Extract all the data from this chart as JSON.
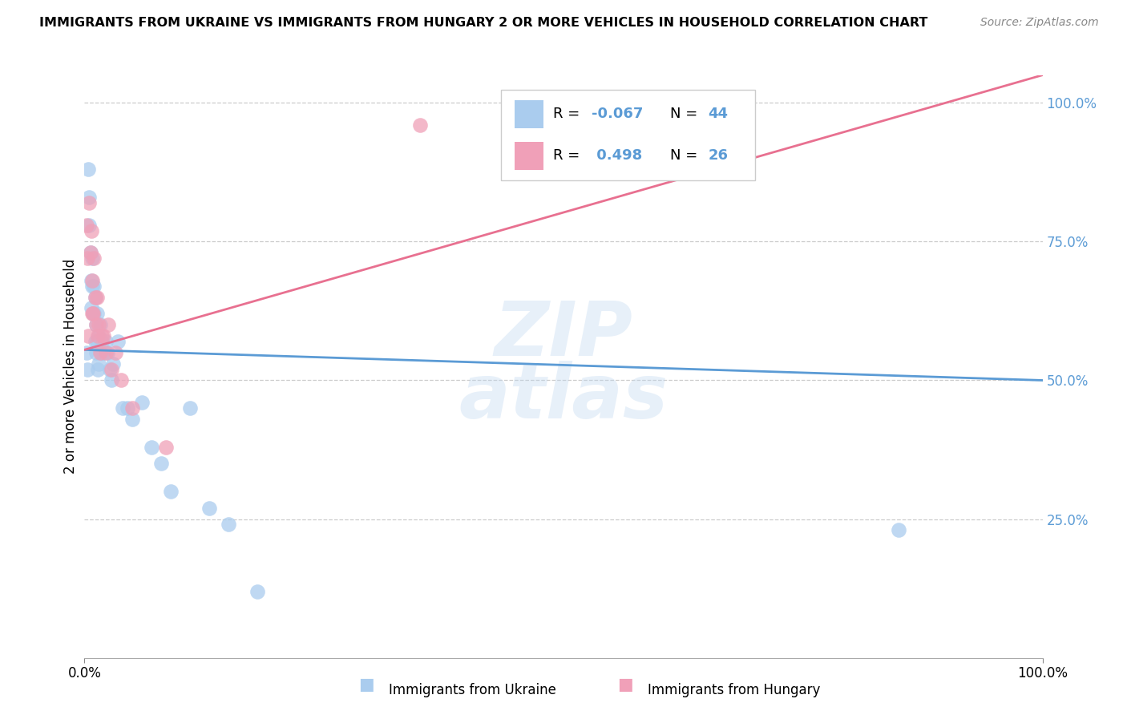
{
  "title": "IMMIGRANTS FROM UKRAINE VS IMMIGRANTS FROM HUNGARY 2 OR MORE VEHICLES IN HOUSEHOLD CORRELATION CHART",
  "source": "Source: ZipAtlas.com",
  "ylabel": "2 or more Vehicles in Household",
  "xlim": [
    0.0,
    1.0
  ],
  "ylim": [
    0.0,
    1.05
  ],
  "ytick_values": [
    0.25,
    0.5,
    0.75,
    1.0
  ],
  "ytick_labels": [
    "25.0%",
    "50.0%",
    "75.0%",
    "100.0%"
  ],
  "ukraine_color": "#aaccee",
  "hungary_color": "#f0a0b8",
  "trendline_ukraine_color": "#5b9bd5",
  "trendline_hungary_color": "#e87090",
  "ukraine_R": -0.067,
  "ukraine_N": 44,
  "hungary_R": 0.498,
  "hungary_N": 26,
  "watermark": "ZIPAtlas",
  "ukraine_x": [
    0.002,
    0.003,
    0.004,
    0.005,
    0.005,
    0.006,
    0.007,
    0.007,
    0.008,
    0.008,
    0.009,
    0.01,
    0.01,
    0.011,
    0.011,
    0.012,
    0.012,
    0.013,
    0.013,
    0.014,
    0.015,
    0.015,
    0.016,
    0.017,
    0.018,
    0.02,
    0.022,
    0.024,
    0.026,
    0.028,
    0.03,
    0.035,
    0.04,
    0.045,
    0.05,
    0.06,
    0.07,
    0.08,
    0.09,
    0.11,
    0.13,
    0.15,
    0.18,
    0.85
  ],
  "ukraine_y": [
    0.55,
    0.52,
    0.88,
    0.83,
    0.78,
    0.73,
    0.68,
    0.63,
    0.72,
    0.67,
    0.62,
    0.67,
    0.62,
    0.57,
    0.65,
    0.6,
    0.55,
    0.62,
    0.57,
    0.52,
    0.58,
    0.53,
    0.6,
    0.55,
    0.57,
    0.55,
    0.57,
    0.55,
    0.52,
    0.5,
    0.53,
    0.57,
    0.45,
    0.45,
    0.43,
    0.46,
    0.38,
    0.35,
    0.3,
    0.45,
    0.27,
    0.24,
    0.12,
    0.23
  ],
  "hungary_x": [
    0.002,
    0.003,
    0.004,
    0.005,
    0.006,
    0.007,
    0.008,
    0.008,
    0.009,
    0.01,
    0.011,
    0.012,
    0.013,
    0.014,
    0.015,
    0.016,
    0.018,
    0.02,
    0.022,
    0.025,
    0.028,
    0.032,
    0.038,
    0.05,
    0.085,
    0.35
  ],
  "hungary_y": [
    0.78,
    0.72,
    0.58,
    0.82,
    0.73,
    0.77,
    0.68,
    0.62,
    0.62,
    0.72,
    0.65,
    0.6,
    0.65,
    0.58,
    0.6,
    0.55,
    0.58,
    0.58,
    0.55,
    0.6,
    0.52,
    0.55,
    0.5,
    0.45,
    0.38,
    0.96
  ],
  "ukraine_trend_x": [
    0.0,
    1.0
  ],
  "ukraine_trend_y": [
    0.555,
    0.5
  ],
  "hungary_trend_x": [
    0.0,
    1.0
  ],
  "hungary_trend_y": [
    0.555,
    1.05
  ]
}
